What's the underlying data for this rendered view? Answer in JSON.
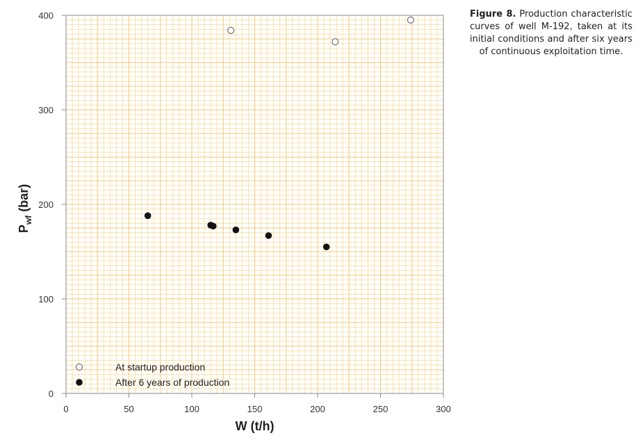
{
  "caption": {
    "label": "Figure 8.",
    "text": "Production characteristic curves of well M-192, taken at its initial conditions and after six years of continuous exploitation time."
  },
  "chart_data": {
    "type": "scatter",
    "xlabel": "W (t/h)",
    "ylabel_main": "P",
    "ylabel_sub": "wf",
    "ylabel_unit": " (bar)",
    "xlim": [
      0,
      300
    ],
    "ylim": [
      0,
      400
    ],
    "x_ticks": [
      0,
      50,
      100,
      150,
      200,
      250,
      300
    ],
    "y_ticks": [
      0,
      100,
      200,
      300,
      400
    ],
    "grid": true,
    "legend_position": "bottom-left",
    "series": [
      {
        "name": "At startup production",
        "marker": "open-circle",
        "points": [
          {
            "x": 131,
            "y": 384
          },
          {
            "x": 214,
            "y": 372
          },
          {
            "x": 274,
            "y": 395
          }
        ]
      },
      {
        "name": "After 6 years of production",
        "marker": "filled-circle",
        "points": [
          {
            "x": 65,
            "y": 188
          },
          {
            "x": 115,
            "y": 178
          },
          {
            "x": 117,
            "y": 177
          },
          {
            "x": 135,
            "y": 173
          },
          {
            "x": 161,
            "y": 167
          },
          {
            "x": 207,
            "y": 155
          }
        ]
      }
    ],
    "colors": {
      "background": "#ffffff",
      "grid_minor": "#f7dc9a",
      "grid_major": "#f0c87a",
      "axis": "#888888",
      "marker": "#111111"
    }
  }
}
